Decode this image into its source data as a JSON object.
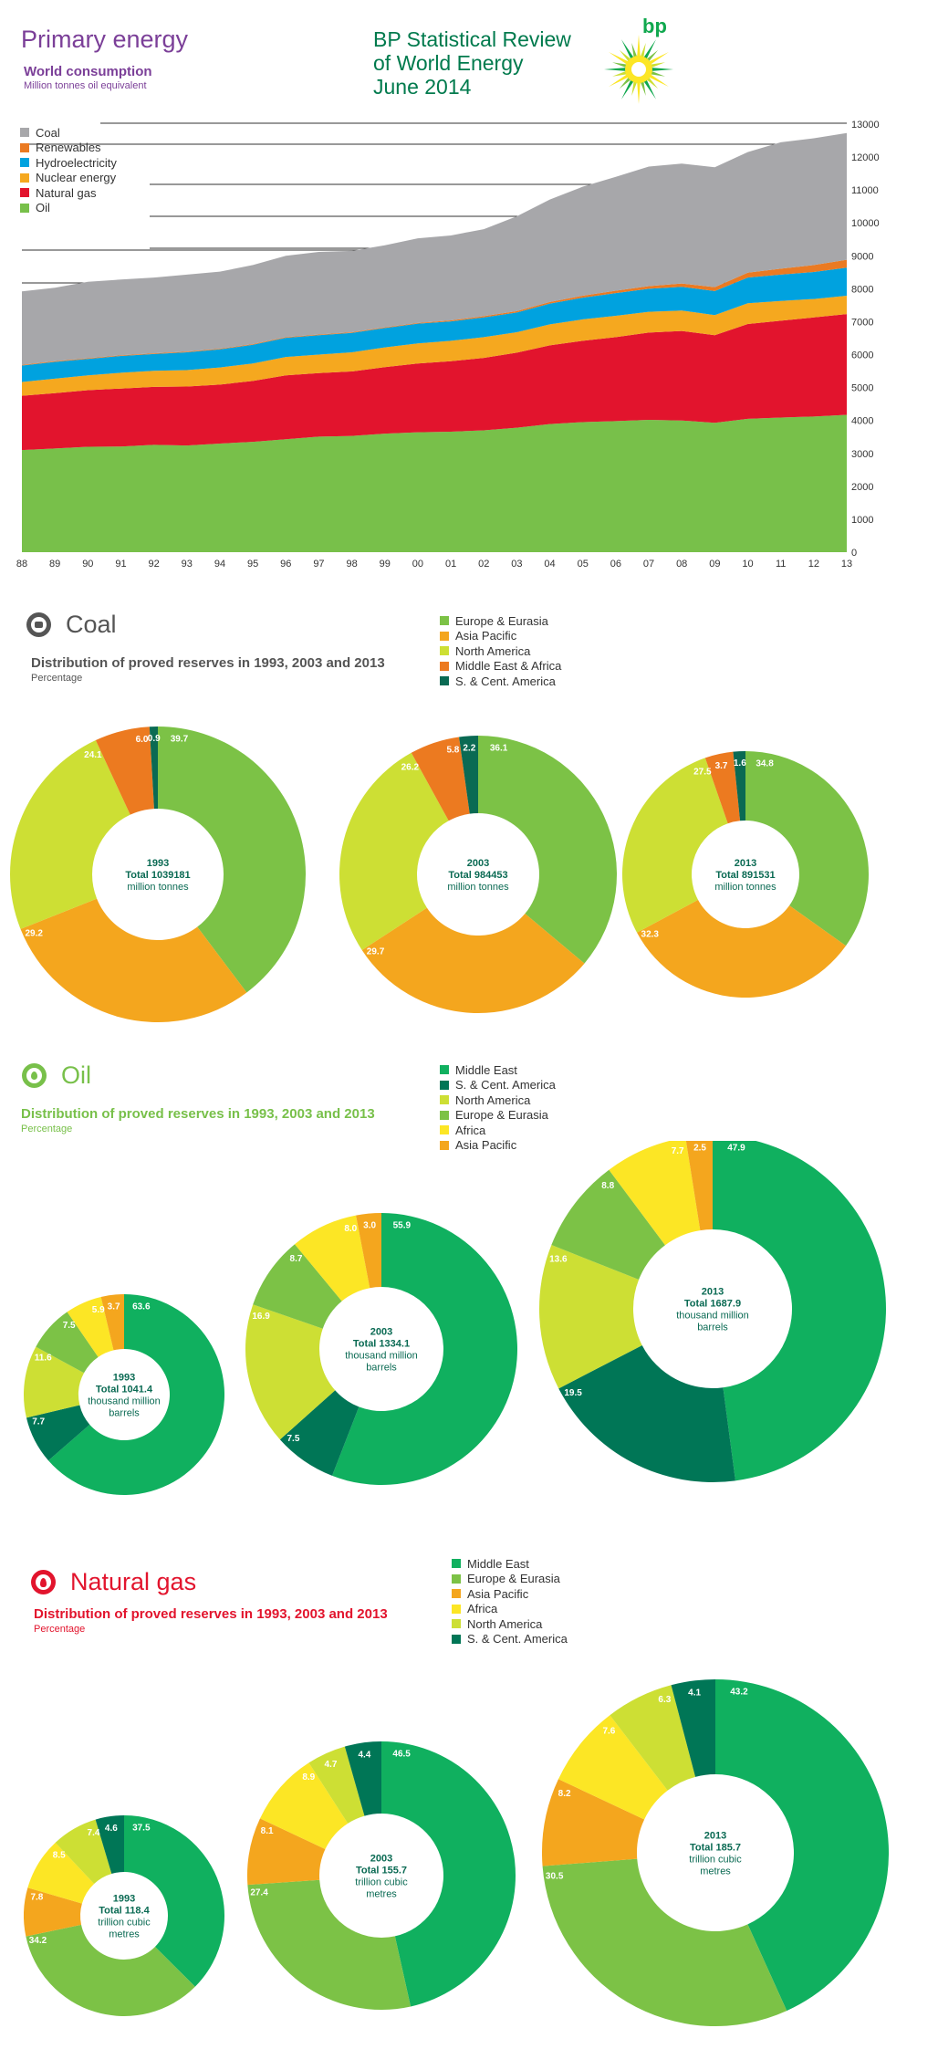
{
  "header": {
    "title": "Primary energy",
    "subtitle": "World consumption",
    "unit": "Million tonnes oil equivalent",
    "review_lines": [
      "BP Statistical Review",
      "of World Energy",
      "June 2014"
    ],
    "logo_text": "bp"
  },
  "colors": {
    "coal": "#a7a7aa",
    "renewables": "#ea7a22",
    "hydro": "#00a2df",
    "nuclear": "#f5a81f",
    "gas": "#e2142d",
    "oil": "#78c04a",
    "mideast": "#10b05f",
    "scam": "#007656",
    "namerica": "#cddf34",
    "europe": "#7cc246",
    "africa": "#fce625",
    "asia": "#f4a61e",
    "meafrica": "#ec7a20",
    "teal": "#0a6a53"
  },
  "chart_data": [
    {
      "type": "area",
      "title": "Primary energy",
      "subtitle": "World consumption",
      "ylabel": "Million tonnes oil equivalent",
      "ylim": [
        0,
        13000
      ],
      "y_ticks": [
        0,
        1000,
        2000,
        3000,
        4000,
        5000,
        6000,
        7000,
        8000,
        9000,
        10000,
        11000,
        12000,
        13000
      ],
      "legend_position": "top-left",
      "stacked": true,
      "x": [
        "88",
        "89",
        "90",
        "91",
        "92",
        "93",
        "94",
        "95",
        "96",
        "97",
        "98",
        "99",
        "00",
        "01",
        "02",
        "03",
        "04",
        "05",
        "06",
        "07",
        "08",
        "09",
        "10",
        "11",
        "12",
        "13"
      ],
      "series": [
        {
          "name": "Oil",
          "color": "#78c04a",
          "values": [
            3100,
            3150,
            3200,
            3210,
            3260,
            3240,
            3300,
            3350,
            3430,
            3510,
            3530,
            3600,
            3640,
            3660,
            3700,
            3780,
            3890,
            3950,
            3980,
            4020,
            4000,
            3930,
            4050,
            4090,
            4120,
            4170
          ]
        },
        {
          "name": "Natural gas",
          "color": "#e2142d",
          "values": [
            1650,
            1680,
            1720,
            1760,
            1760,
            1790,
            1790,
            1850,
            1940,
            1930,
            1960,
            2020,
            2090,
            2140,
            2200,
            2280,
            2390,
            2470,
            2550,
            2650,
            2720,
            2660,
            2880,
            2940,
            3010,
            3060
          ]
        },
        {
          "name": "Nuclear energy",
          "color": "#f5a81f",
          "values": [
            420,
            440,
            450,
            480,
            490,
            500,
            520,
            530,
            560,
            560,
            580,
            600,
            610,
            620,
            630,
            620,
            640,
            650,
            650,
            630,
            620,
            610,
            630,
            600,
            560,
            560
          ]
        },
        {
          "name": "Hydroelectricity",
          "color": "#00a2df",
          "values": [
            500,
            510,
            500,
            510,
            510,
            540,
            550,
            570,
            580,
            590,
            590,
            590,
            600,
            590,
            600,
            600,
            630,
            660,
            690,
            700,
            720,
            730,
            780,
            800,
            820,
            850
          ]
        },
        {
          "name": "Renewables",
          "color": "#ea7a22",
          "values": [
            20,
            20,
            20,
            20,
            20,
            20,
            20,
            20,
            20,
            20,
            20,
            20,
            20,
            30,
            40,
            40,
            50,
            60,
            70,
            80,
            100,
            120,
            150,
            180,
            210,
            240
          ]
        },
        {
          "name": "Coal",
          "color": "#a7a7aa",
          "values": [
            2230,
            2230,
            2320,
            2300,
            2300,
            2340,
            2340,
            2400,
            2470,
            2510,
            2470,
            2490,
            2570,
            2580,
            2640,
            2880,
            3110,
            3310,
            3460,
            3630,
            3640,
            3640,
            3660,
            3840,
            3850,
            3850
          ]
        }
      ]
    },
    {
      "type": "pie",
      "section": "Coal",
      "title": "Distribution of proved reserves in 1993, 2003 and 2013",
      "subtitle": "Percentage",
      "legend": [
        {
          "name": "Europe & Eurasia",
          "color": "#7cc246"
        },
        {
          "name": "Asia Pacific",
          "color": "#f4a61e"
        },
        {
          "name": "North America",
          "color": "#cddf34"
        },
        {
          "name": "Middle East & Africa",
          "color": "#ec7a20"
        },
        {
          "name": "S. & Cent. America",
          "color": "#0a6a53"
        }
      ],
      "pies": [
        {
          "year": "1993",
          "total": "Total 1039181",
          "unit_lines": [
            "million tonnes"
          ],
          "values": [
            39.7,
            29.2,
            24.1,
            6.0,
            0.9
          ],
          "labels": [
            "39.7",
            "29.2",
            "24.1",
            "6.0",
            "0.9"
          ]
        },
        {
          "year": "2003",
          "total": "Total 984453",
          "unit_lines": [
            "million tonnes"
          ],
          "values": [
            36.1,
            29.7,
            26.2,
            5.8,
            2.2
          ],
          "labels": [
            "36.1",
            "29.7",
            "26.2",
            "5.8",
            "2.2"
          ]
        },
        {
          "year": "2013",
          "total": "Total 891531",
          "unit_lines": [
            "million tonnes"
          ],
          "values": [
            34.8,
            32.3,
            27.5,
            3.7,
            1.6
          ],
          "labels": [
            "34.8",
            "32.3",
            "27.5",
            "3.7",
            "1.6"
          ]
        }
      ]
    },
    {
      "type": "pie",
      "section": "Oil",
      "title": "Distribution of proved reserves in 1993, 2003 and 2013",
      "subtitle": "Percentage",
      "legend": [
        {
          "name": "Middle East",
          "color": "#10b05f"
        },
        {
          "name": "S. & Cent. America",
          "color": "#007656"
        },
        {
          "name": "North America",
          "color": "#cddf34"
        },
        {
          "name": "Europe & Eurasia",
          "color": "#7cc246"
        },
        {
          "name": "Africa",
          "color": "#fce625"
        },
        {
          "name": "Asia Pacific",
          "color": "#f4a61e"
        }
      ],
      "pies": [
        {
          "year": "1993",
          "total": "Total 1041.4",
          "unit_lines": [
            "thousand million",
            "barrels"
          ],
          "values": [
            63.6,
            7.7,
            11.6,
            7.5,
            5.9,
            3.7
          ],
          "labels": [
            "63.6",
            "7.7",
            "11.6",
            "7.5",
            "5.9",
            "3.7"
          ]
        },
        {
          "year": "2003",
          "total": "Total 1334.1",
          "unit_lines": [
            "thousand million",
            "barrels"
          ],
          "values": [
            55.9,
            7.5,
            16.9,
            8.7,
            8.0,
            3.0
          ],
          "labels": [
            "55.9",
            "7.5",
            "16.9",
            "8.7",
            "8.0",
            "3.0"
          ]
        },
        {
          "year": "2013",
          "total": "Total 1687.9",
          "unit_lines": [
            "thousand million",
            "barrels"
          ],
          "values": [
            47.9,
            19.5,
            13.6,
            8.8,
            7.7,
            2.5
          ],
          "labels": [
            "47.9",
            "19.5",
            "13.6",
            "8.8",
            "7.7",
            "2.5"
          ]
        }
      ]
    },
    {
      "type": "pie",
      "section": "Natural gas",
      "title": "Distribution of proved reserves in 1993, 2003 and 2013",
      "subtitle": "Percentage",
      "legend": [
        {
          "name": "Middle East",
          "color": "#10b05f"
        },
        {
          "name": "Europe & Eurasia",
          "color": "#7cc246"
        },
        {
          "name": "Asia Pacific",
          "color": "#f4a61e"
        },
        {
          "name": "Africa",
          "color": "#fce625"
        },
        {
          "name": "North America",
          "color": "#cddf34"
        },
        {
          "name": "S. & Cent. America",
          "color": "#007656"
        }
      ],
      "pies": [
        {
          "year": "1993",
          "total": "Total 118.4",
          "unit_lines": [
            "trillion cubic",
            "metres"
          ],
          "values": [
            37.5,
            34.2,
            7.8,
            8.5,
            7.4,
            4.6
          ],
          "labels": [
            "37.5",
            "34.2",
            "7.8",
            "8.5",
            "7.4",
            "4.6"
          ]
        },
        {
          "year": "2003",
          "total": "Total 155.7",
          "unit_lines": [
            "trillion cubic",
            "metres"
          ],
          "values": [
            46.5,
            27.4,
            8.1,
            8.9,
            4.7,
            4.4
          ],
          "labels": [
            "46.5",
            "27.4",
            "8.1",
            "8.9",
            "4.7",
            "4.4"
          ]
        },
        {
          "year": "2013",
          "total": "Total 185.7",
          "unit_lines": [
            "trillion cubic",
            "metres"
          ],
          "values": [
            43.2,
            30.5,
            8.2,
            7.6,
            6.3,
            4.1
          ],
          "labels": [
            "43.2",
            "30.5",
            "8.2",
            "7.6",
            "6.3",
            "4.1"
          ]
        }
      ]
    }
  ]
}
